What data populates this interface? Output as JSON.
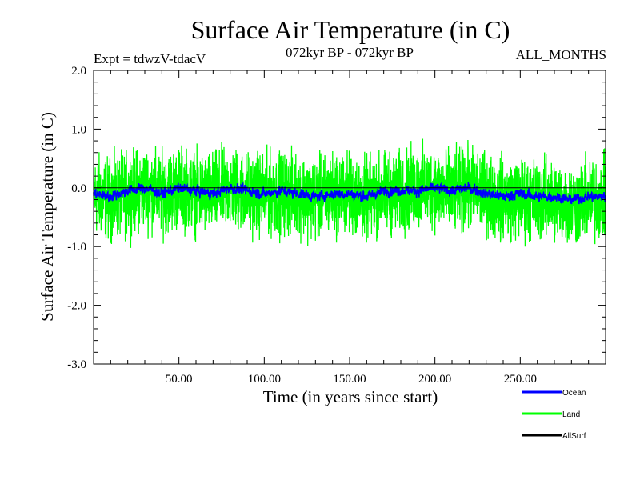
{
  "chart_data": {
    "type": "line",
    "title": "Surface Air Temperature (in C)",
    "subtitle_left": "Expt = tdwzV-tdacV",
    "subtitle_center": "072kyr BP - 072kyr BP",
    "subtitle_right": "ALL_MONTHS",
    "xlabel": "Time (in years since start)",
    "ylabel": "Surface Air Temperature (in C)",
    "xlim": [
      0,
      300
    ],
    "ylim": [
      -3.0,
      2.0
    ],
    "x_ticks": [
      50,
      100,
      150,
      200,
      250
    ],
    "x_tick_labels": [
      "50.00",
      "100.00",
      "150.00",
      "200.00",
      "250.00"
    ],
    "y_ticks": [
      2.0,
      1.0,
      0.0,
      -1.0,
      -2.0,
      -3.0
    ],
    "y_tick_labels": [
      "2.0",
      "1.0",
      "0.0",
      "-1.0",
      "-2.0",
      "-3.0"
    ],
    "zero_line": true,
    "legend_position": "bottom-right",
    "series": [
      {
        "name": "Ocean",
        "color": "#0000ff",
        "x": [
          0,
          10,
          20,
          30,
          40,
          50,
          60,
          70,
          80,
          90,
          100,
          110,
          120,
          130,
          140,
          150,
          160,
          170,
          180,
          190,
          200,
          210,
          220,
          230,
          240,
          250,
          260,
          270,
          280,
          290,
          300
        ],
        "values": [
          -0.1,
          -0.15,
          -0.05,
          0.0,
          -0.1,
          0.0,
          -0.05,
          -0.1,
          0.0,
          -0.05,
          -0.1,
          -0.05,
          -0.1,
          -0.15,
          -0.1,
          -0.1,
          -0.15,
          -0.05,
          -0.05,
          -0.05,
          0.0,
          -0.05,
          0.0,
          -0.1,
          -0.15,
          -0.1,
          -0.15,
          -0.15,
          -0.2,
          -0.15,
          -0.15
        ]
      },
      {
        "name": "Land",
        "color": "#00ff00",
        "x": [
          0,
          10,
          20,
          30,
          40,
          50,
          60,
          70,
          80,
          90,
          100,
          110,
          120,
          130,
          140,
          150,
          160,
          170,
          180,
          190,
          200,
          210,
          220,
          230,
          240,
          250,
          260,
          270,
          280,
          290,
          300
        ],
        "values": [
          -0.1,
          -0.2,
          -0.1,
          0.0,
          -0.1,
          0.0,
          -0.1,
          -0.1,
          0.0,
          -0.1,
          -0.1,
          -0.1,
          -0.1,
          -0.2,
          -0.1,
          -0.1,
          -0.2,
          -0.1,
          -0.1,
          0.0,
          0.0,
          -0.1,
          0.0,
          -0.1,
          -0.2,
          -0.2,
          -0.2,
          -0.2,
          -0.3,
          -0.2,
          -0.2
        ]
      },
      {
        "name": "AllSurf",
        "color": "#000000",
        "x": [],
        "values": []
      }
    ]
  }
}
